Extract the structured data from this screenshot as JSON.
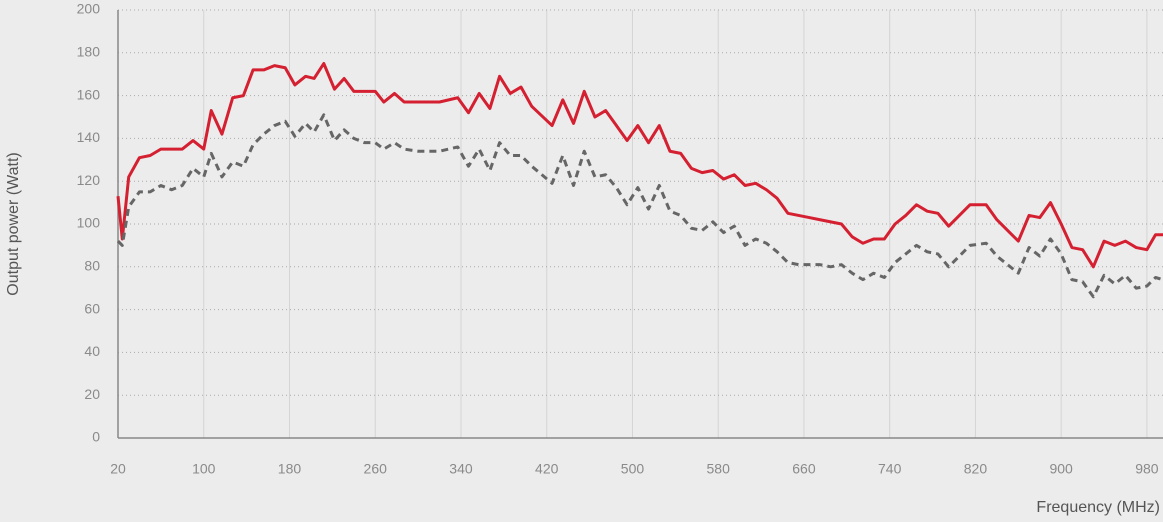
{
  "chart_data": {
    "type": "line",
    "x_label": "Frequency (MHz)",
    "y_label": "Output power (Watt)",
    "x": [
      20,
      24,
      30,
      40,
      50,
      60,
      70,
      80,
      90,
      100,
      107,
      117,
      127,
      137,
      146,
      156,
      166,
      176,
      185,
      195,
      203,
      212,
      222,
      231,
      240,
      250,
      260,
      268,
      278,
      287,
      300,
      320,
      337,
      347,
      357,
      367,
      376,
      386,
      396,
      406,
      425,
      435,
      445,
      455,
      465,
      475,
      485,
      495,
      505,
      515,
      525,
      535,
      545,
      555,
      565,
      575,
      585,
      595,
      605,
      615,
      625,
      635,
      645,
      655,
      665,
      675,
      685,
      695,
      705,
      715,
      725,
      735,
      745,
      755,
      765,
      775,
      785,
      795,
      805,
      815,
      830,
      840,
      850,
      860,
      870,
      880,
      890,
      900,
      910,
      920,
      930,
      940,
      950,
      960,
      970,
      980,
      988,
      995
    ],
    "series": [
      {
        "color": "#d42030",
        "dashed": false,
        "values": [
          113,
          93,
          122,
          131,
          132,
          135,
          135,
          135,
          139,
          135,
          153,
          142,
          159,
          160,
          172,
          172,
          174,
          173,
          165,
          169,
          168,
          175,
          163,
          168,
          162,
          162,
          162,
          157,
          161,
          157,
          157,
          157,
          159,
          152,
          161,
          154,
          169,
          161,
          164,
          155,
          146,
          158,
          147,
          162,
          150,
          153,
          146,
          139,
          146,
          138,
          146,
          134,
          133,
          126,
          124,
          125,
          121,
          123,
          118,
          119,
          116,
          112,
          105,
          104,
          103,
          102,
          101,
          100,
          94,
          91,
          93,
          93,
          100,
          104,
          109,
          106,
          105,
          99,
          104,
          109,
          109,
          102,
          97,
          92,
          104,
          103,
          110,
          100,
          89,
          88,
          80,
          92,
          90,
          92,
          89,
          88,
          95,
          95
        ]
      },
      {
        "color": "#666666",
        "dashed": true,
        "values": [
          92,
          90,
          108,
          115,
          115,
          118,
          116,
          118,
          126,
          122,
          133,
          122,
          129,
          127,
          137,
          142,
          146,
          148,
          141,
          147,
          143,
          151,
          139,
          144,
          140,
          138,
          138,
          135,
          138,
          135,
          134,
          134,
          136,
          127,
          135,
          125,
          138,
          132,
          132,
          127,
          119,
          132,
          118,
          134,
          122,
          123,
          117,
          109,
          117,
          107,
          118,
          106,
          104,
          98,
          97,
          101,
          96,
          99,
          90,
          93,
          91,
          87,
          82,
          81,
          81,
          81,
          80,
          81,
          77,
          74,
          77,
          75,
          82,
          86,
          90,
          87,
          86,
          80,
          85,
          90,
          91,
          85,
          81,
          77,
          89,
          85,
          93,
          86,
          74,
          73,
          66,
          76,
          72,
          76,
          70,
          71,
          75,
          74
        ]
      }
    ],
    "xlim": [
      20,
      995
    ],
    "xticks": [
      20,
      100,
      180,
      260,
      340,
      420,
      500,
      580,
      660,
      740,
      820,
      900,
      980
    ],
    "ylim": [
      0,
      200
    ],
    "yticks": [
      0,
      20,
      40,
      60,
      80,
      100,
      120,
      140,
      160,
      180,
      200
    ],
    "grid": true
  }
}
